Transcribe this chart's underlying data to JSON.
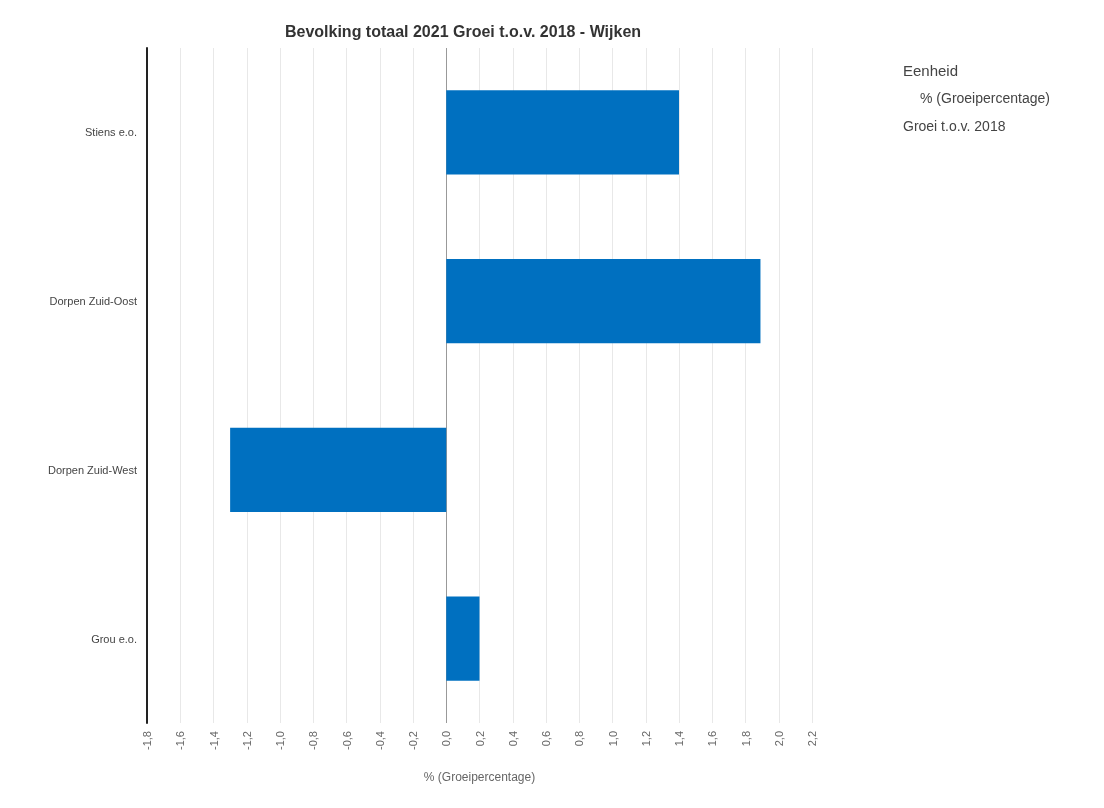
{
  "chart_data": {
    "type": "bar",
    "orientation": "horizontal",
    "title": "Bevolking totaal 2021 Groei t.o.v. 2018 - Wijken",
    "xlabel": "% (Groeipercentage)",
    "legend_title": "Eenheid",
    "annotations": [
      "% (Groeipercentage)",
      "Groei t.o.v. 2018"
    ],
    "categories": [
      "Stiens e.o.",
      "Dorpen Zuid-Oost",
      "Dorpen Zuid-West",
      "Grou e.o."
    ],
    "values": [
      1.4,
      1.89,
      -1.3,
      0.2
    ],
    "color": "#0070c0",
    "xlim": [
      -1.8,
      2.2
    ],
    "xticks": [
      {
        "value": -1.8,
        "label": "-1,8"
      },
      {
        "value": -1.6,
        "label": "-1,6"
      },
      {
        "value": -1.4,
        "label": "-1,4"
      },
      {
        "value": -1.2,
        "label": "-1,2"
      },
      {
        "value": -1.0,
        "label": "-1,0"
      },
      {
        "value": -0.8,
        "label": "-0,8"
      },
      {
        "value": -0.6,
        "label": "-0,6"
      },
      {
        "value": -0.4,
        "label": "-0,4"
      },
      {
        "value": -0.2,
        "label": "-0,2"
      },
      {
        "value": 0,
        "label": "0,0"
      },
      {
        "value": 0.2,
        "label": "0,2"
      },
      {
        "value": 0.4,
        "label": "0,4"
      },
      {
        "value": 0.6,
        "label": "0,6"
      },
      {
        "value": 0.8,
        "label": "0,8"
      },
      {
        "value": 1.0,
        "label": "1,0"
      },
      {
        "value": 1.2,
        "label": "1,2"
      },
      {
        "value": 1.4,
        "label": "1,4"
      },
      {
        "value": 1.6,
        "label": "1,6"
      },
      {
        "value": 1.8,
        "label": "1,8"
      },
      {
        "value": 2.0,
        "label": "2,0"
      },
      {
        "value": 2.2,
        "label": "2,2"
      }
    ],
    "grid": "x"
  }
}
